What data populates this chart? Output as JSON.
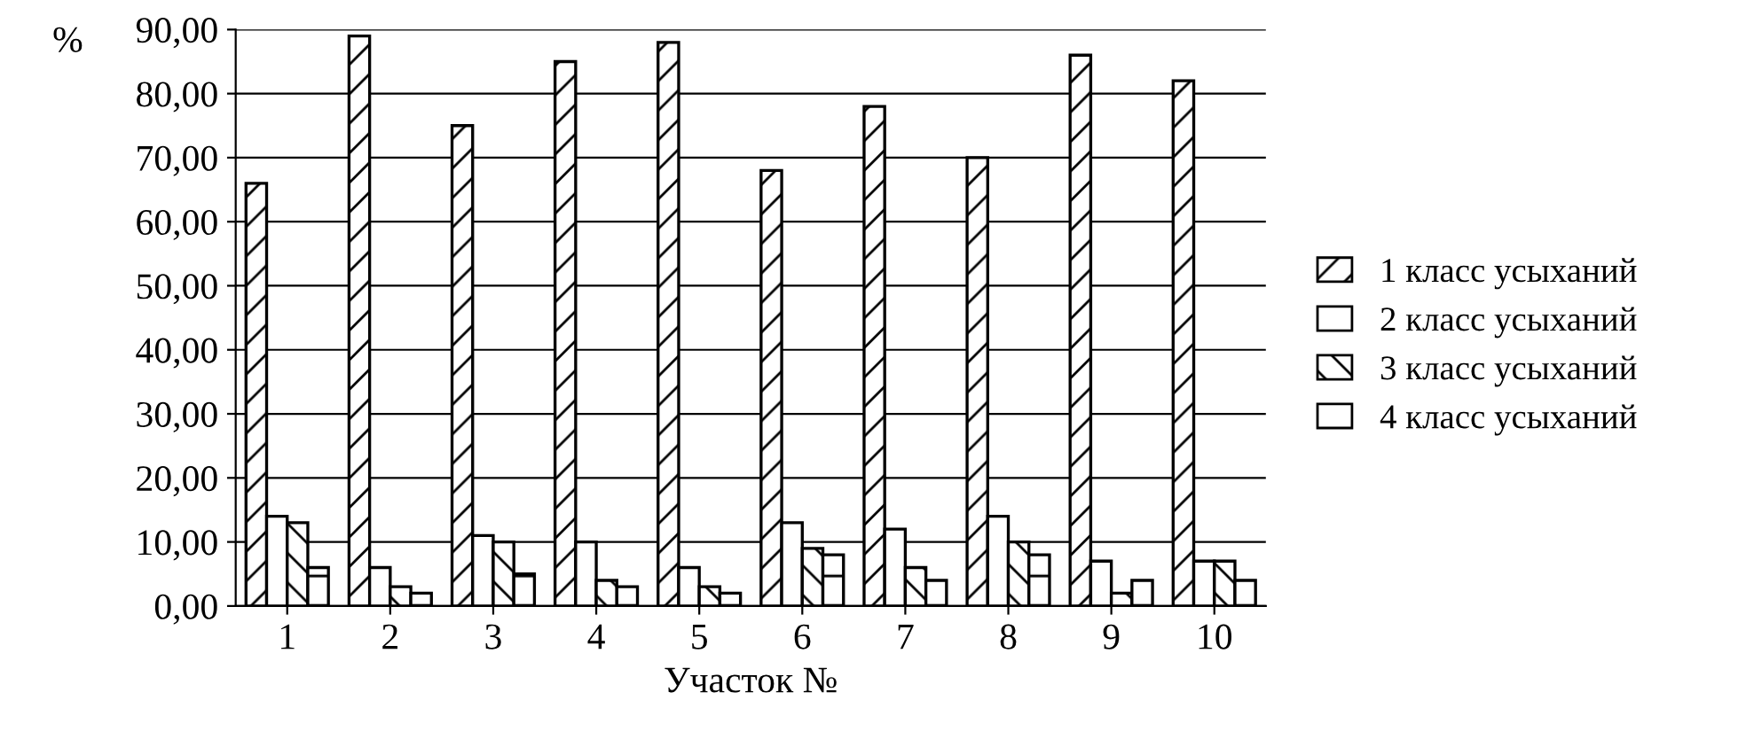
{
  "chart_data": {
    "type": "bar",
    "ylabel": "%",
    "xlabel": "Участок №",
    "categories": [
      "1",
      "2",
      "3",
      "4",
      "5",
      "6",
      "7",
      "8",
      "9",
      "10"
    ],
    "series": [
      {
        "name": "1 класс усыханий",
        "color": "#000000",
        "values": [
          66,
          89,
          75,
          85,
          88,
          68,
          78,
          70,
          86,
          82
        ]
      },
      {
        "name": "2 класс усыханий",
        "color": "#ffffff",
        "values": [
          14,
          6,
          11,
          10,
          6,
          13,
          12,
          14,
          7,
          7
        ]
      },
      {
        "name": "3 класс усыханий",
        "color": "#000000",
        "values": [
          13,
          3,
          10,
          4,
          3,
          9,
          6,
          10,
          2,
          7
        ]
      },
      {
        "name": "4 класс усыханий",
        "color": "#000000",
        "values": [
          6,
          2,
          5,
          3,
          2,
          8,
          4,
          8,
          4,
          4
        ]
      }
    ],
    "ylim": [
      0,
      90
    ],
    "yticks": [
      {
        "value": 0,
        "label": "0,00"
      },
      {
        "value": 10,
        "label": "10,00"
      },
      {
        "value": 20,
        "label": "20,00"
      },
      {
        "value": 30,
        "label": "30,00"
      },
      {
        "value": 40,
        "label": "40,00"
      },
      {
        "value": 50,
        "label": "50,00"
      },
      {
        "value": 60,
        "label": "60,00"
      },
      {
        "value": 70,
        "label": "70,00"
      },
      {
        "value": 80,
        "label": "80,00"
      },
      {
        "value": 90,
        "label": "90,00"
      }
    ],
    "grid": "y",
    "legend": "right"
  }
}
